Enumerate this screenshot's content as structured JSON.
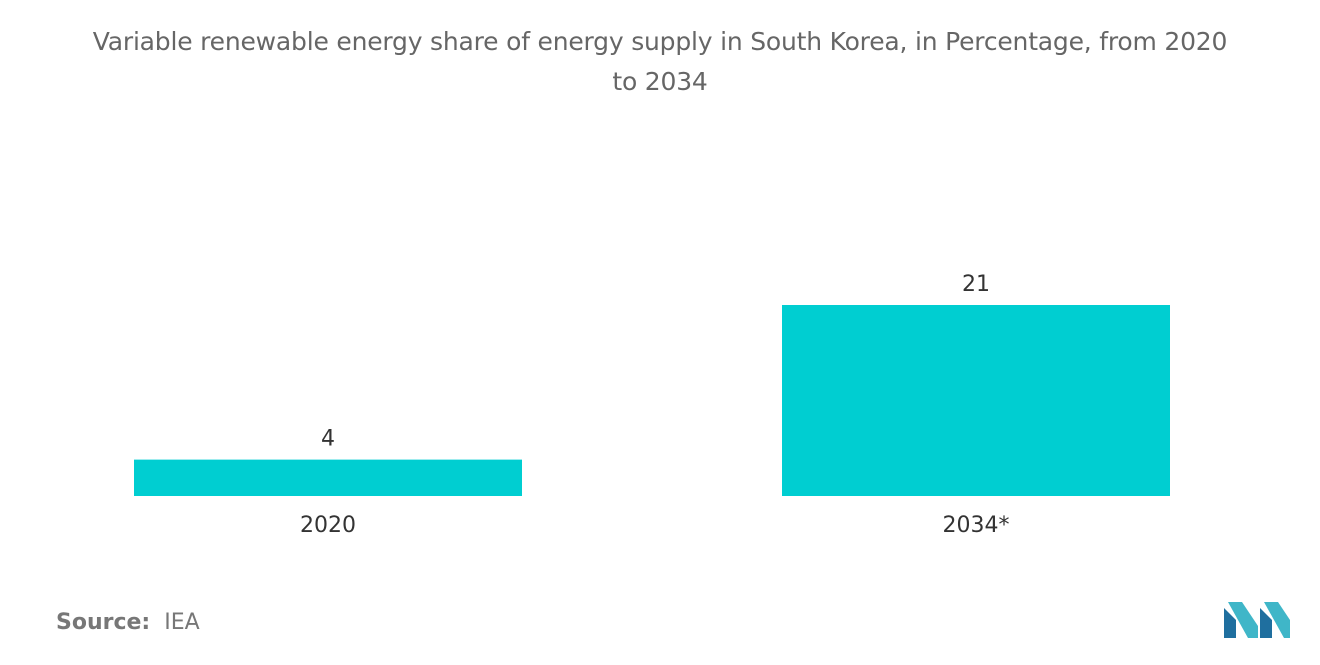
{
  "chart_data": {
    "type": "bar",
    "title_line1": "Variable renewable energy share of energy supply in South Korea, in Percentage, from 2020",
    "title_line2": "to 2034",
    "categories": [
      "2020",
      "2034*"
    ],
    "values": [
      4,
      21
    ],
    "value_labels": [
      "4",
      "21"
    ],
    "xlabel": "",
    "ylabel": "",
    "ylim": [
      0,
      21
    ],
    "grid": false,
    "legend": "none",
    "bar_color": "#00CED1"
  },
  "source": {
    "label": "Source:",
    "value": "IEA"
  },
  "logo": {
    "icon": "mordor-intelligence-logo-icon",
    "color_dark": "#1f6f9f",
    "color_light": "#3fb6c8"
  }
}
